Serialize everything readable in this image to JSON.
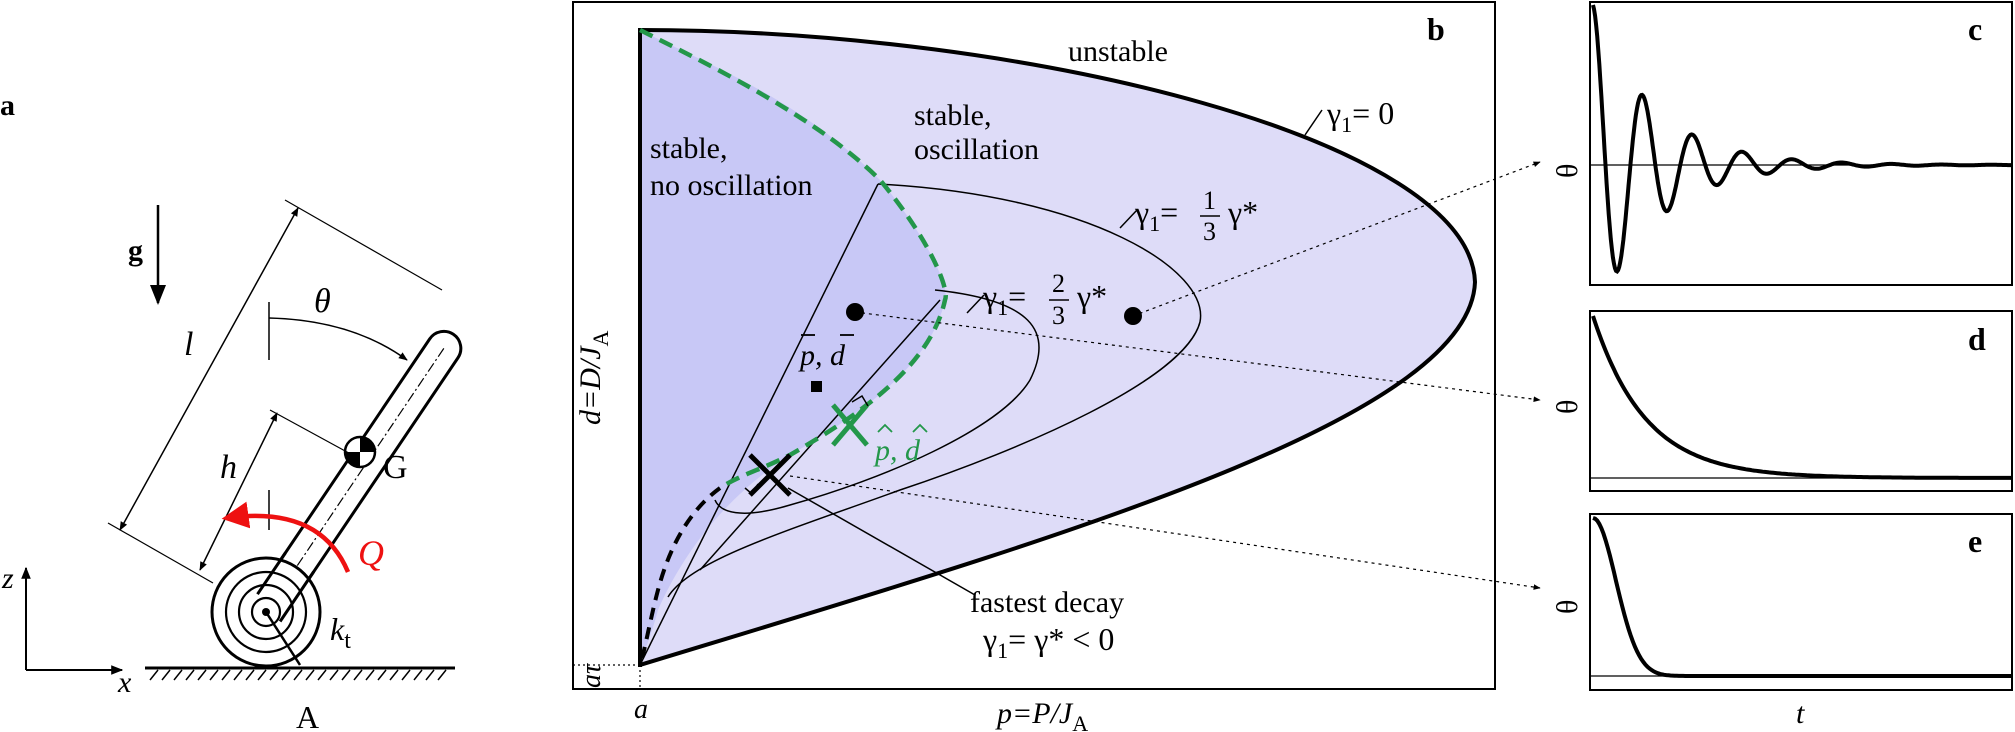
{
  "panel_a": {
    "tag": "a",
    "gravity": "g",
    "theta": "θ",
    "length": "l",
    "height": "h",
    "cog": "G",
    "torque": "Q",
    "spring_k": "k",
    "spring_sub": "t",
    "pivot": "A",
    "axis_z": "z",
    "axis_x": "x"
  },
  "panel_b": {
    "tag": "b",
    "region_unstable": "unstable",
    "region_osc_1": "stable,",
    "region_osc_2": "oscillation",
    "region_noosc_1": "stable,",
    "region_noosc_2": "no oscillation",
    "gamma": "γ",
    "gamma_sub": "1",
    "eq_zero": "= 0",
    "eq_eq": "=",
    "frac_1_num": "1",
    "frac_2_num": "2",
    "frac_den": "3",
    "gamma_star": "γ*",
    "pbar": "p, d",
    "phat": "p, d",
    "fastest_1": "fastest decay",
    "fastest_2a": "γ",
    "fastest_2b": "1",
    "fastest_2c": "= γ* < 0",
    "ylabel_a": "d=D/J",
    "ylabel_sub": "A",
    "xlabel_a": "p=P/J",
    "xlabel_sub": "A",
    "tick_x": "a",
    "tick_y": "aτ"
  },
  "panel_c": {
    "tag": "c",
    "ylabel": "θ"
  },
  "panel_d": {
    "tag": "d",
    "ylabel": "θ"
  },
  "panel_e": {
    "tag": "e",
    "ylabel": "θ",
    "xlabel": "t"
  },
  "colors": {
    "region_outer": "#dedcf8",
    "region_inner": "#c8c8f6",
    "green_curve": "#23974a",
    "torque_red": "#ee1111"
  }
}
